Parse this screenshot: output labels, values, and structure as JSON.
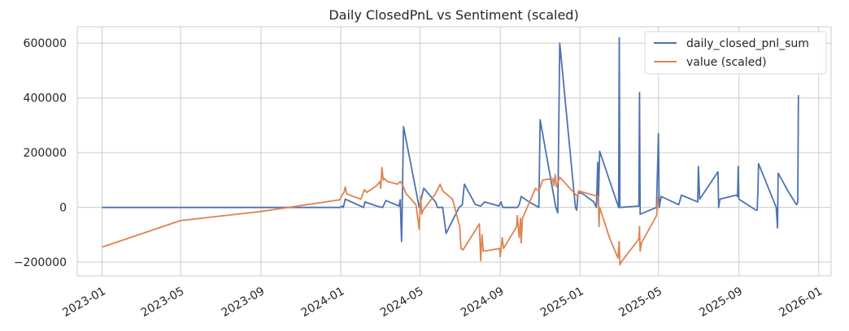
{
  "chart_data": {
    "type": "line",
    "title": "Daily ClosedPnL vs Sentiment (scaled)",
    "xlabel": "",
    "ylabel": "",
    "x_axis": "date",
    "xlim": [
      "2022-11-24",
      "2026-01-20"
    ],
    "ylim": [
      -250000,
      660000
    ],
    "x_ticks": [
      "2023-01-01",
      "2023-05-01",
      "2023-09-01",
      "2024-01-01",
      "2024-05-01",
      "2024-09-01",
      "2025-01-01",
      "2025-05-01",
      "2025-09-01",
      "2026-01-01"
    ],
    "x_tick_labels": [
      "2023-01",
      "2023-05",
      "2023-09",
      "2024-01",
      "2024-05",
      "2024-09",
      "2025-01",
      "2025-05",
      "2025-09",
      "2026-01"
    ],
    "y_ticks": [
      -200000,
      0,
      200000,
      400000,
      600000
    ],
    "y_tick_labels": [
      "−200000",
      "0",
      "200000",
      "400000",
      "600000"
    ],
    "grid": true,
    "legend": "top-right",
    "series": [
      {
        "name": "daily_closed_pnl_sum",
        "color": "#4c72b0",
        "points": [
          [
            "2023-01-01",
            0
          ],
          [
            "2023-12-31",
            0
          ],
          [
            "2024-01-03",
            5000
          ],
          [
            "2024-01-05",
            0
          ],
          [
            "2024-01-08",
            30000
          ],
          [
            "2024-02-05",
            0
          ],
          [
            "2024-02-07",
            20000
          ],
          [
            "2024-02-25",
            5000
          ],
          [
            "2024-03-05",
            0
          ],
          [
            "2024-03-10",
            25000
          ],
          [
            "2024-03-30",
            5000
          ],
          [
            "2024-04-01",
            28000
          ],
          [
            "2024-04-03",
            -125000
          ],
          [
            "2024-04-04",
            0
          ],
          [
            "2024-04-06",
            295000
          ],
          [
            "2024-04-30",
            0
          ],
          [
            "2024-05-07",
            70000
          ],
          [
            "2024-05-25",
            20000
          ],
          [
            "2024-05-28",
            0
          ],
          [
            "2024-06-05",
            0
          ],
          [
            "2024-06-10",
            -95000
          ],
          [
            "2024-06-30",
            0
          ],
          [
            "2024-07-05",
            10000
          ],
          [
            "2024-07-08",
            85000
          ],
          [
            "2024-07-25",
            10000
          ],
          [
            "2024-08-02",
            5000
          ],
          [
            "2024-08-08",
            20000
          ],
          [
            "2024-08-30",
            5000
          ],
          [
            "2024-09-02",
            20000
          ],
          [
            "2024-09-05",
            0
          ],
          [
            "2024-09-27",
            0
          ],
          [
            "2024-09-30",
            10000
          ],
          [
            "2024-10-03",
            40000
          ],
          [
            "2024-10-15",
            20000
          ],
          [
            "2024-10-30",
            0
          ],
          [
            "2024-11-01",
            320000
          ],
          [
            "2024-11-25",
            0
          ],
          [
            "2024-11-28",
            -20000
          ],
          [
            "2024-12-01",
            600000
          ],
          [
            "2024-12-25",
            0
          ],
          [
            "2024-12-27",
            -10000
          ],
          [
            "2024-12-29",
            55000
          ],
          [
            "2025-01-05",
            50000
          ],
          [
            "2025-01-22",
            20000
          ],
          [
            "2025-01-26",
            0
          ],
          [
            "2025-01-28",
            165000
          ],
          [
            "2025-01-29",
            10000
          ],
          [
            "2025-01-31",
            205000
          ],
          [
            "2025-03-01",
            0
          ],
          [
            "2025-03-02",
            620000
          ],
          [
            "2025-03-03",
            0
          ],
          [
            "2025-04-01",
            5000
          ],
          [
            "2025-04-02",
            420000
          ],
          [
            "2025-04-03",
            -25000
          ],
          [
            "2025-04-28",
            0
          ],
          [
            "2025-05-01",
            270000
          ],
          [
            "2025-05-02",
            0
          ],
          [
            "2025-05-05",
            40000
          ],
          [
            "2025-06-01",
            10000
          ],
          [
            "2025-06-05",
            45000
          ],
          [
            "2025-06-30",
            20000
          ],
          [
            "2025-07-01",
            150000
          ],
          [
            "2025-07-03",
            30000
          ],
          [
            "2025-07-31",
            130000
          ],
          [
            "2025-08-01",
            0
          ],
          [
            "2025-08-03",
            30000
          ],
          [
            "2025-08-28",
            45000
          ],
          [
            "2025-08-30",
            40000
          ],
          [
            "2025-08-31",
            150000
          ],
          [
            "2025-09-01",
            30000
          ],
          [
            "2025-09-27",
            -10000
          ],
          [
            "2025-09-29",
            -10000
          ],
          [
            "2025-09-30",
            60000
          ],
          [
            "2025-10-01",
            160000
          ],
          [
            "2025-10-28",
            0
          ],
          [
            "2025-10-30",
            -75000
          ],
          [
            "2025-10-31",
            125000
          ],
          [
            "2025-11-15",
            60000
          ],
          [
            "2025-11-28",
            10000
          ],
          [
            "2025-11-30",
            20000
          ],
          [
            "2025-12-01",
            410000
          ]
        ]
      },
      {
        "name": "value (scaled)",
        "color": "#dd8452",
        "points": [
          [
            "2023-01-01",
            -145000
          ],
          [
            "2023-05-01",
            -48000
          ],
          [
            "2023-09-01",
            -15000
          ],
          [
            "2023-12-31",
            28000
          ],
          [
            "2024-01-03",
            45000
          ],
          [
            "2024-01-06",
            55000
          ],
          [
            "2024-01-08",
            75000
          ],
          [
            "2024-01-10",
            50000
          ],
          [
            "2024-01-20",
            40000
          ],
          [
            "2024-02-01",
            30000
          ],
          [
            "2024-02-06",
            65000
          ],
          [
            "2024-02-10",
            55000
          ],
          [
            "2024-02-25",
            80000
          ],
          [
            "2024-03-01",
            95000
          ],
          [
            "2024-03-02",
            70000
          ],
          [
            "2024-03-04",
            145000
          ],
          [
            "2024-03-06",
            100000
          ],
          [
            "2024-03-08",
            105000
          ],
          [
            "2024-03-12",
            95000
          ],
          [
            "2024-03-28",
            85000
          ],
          [
            "2024-04-01",
            95000
          ],
          [
            "2024-04-05",
            80000
          ],
          [
            "2024-04-10",
            50000
          ],
          [
            "2024-04-25",
            10000
          ],
          [
            "2024-04-30",
            -80000
          ],
          [
            "2024-05-02",
            40000
          ],
          [
            "2024-05-04",
            -25000
          ],
          [
            "2024-05-06",
            -10000
          ],
          [
            "2024-05-25",
            50000
          ],
          [
            "2024-06-01",
            85000
          ],
          [
            "2024-06-05",
            60000
          ],
          [
            "2024-06-20",
            30000
          ],
          [
            "2024-07-01",
            -70000
          ],
          [
            "2024-07-03",
            -150000
          ],
          [
            "2024-07-06",
            -155000
          ],
          [
            "2024-07-10",
            -140000
          ],
          [
            "2024-07-31",
            -60000
          ],
          [
            "2024-08-02",
            -195000
          ],
          [
            "2024-08-04",
            -100000
          ],
          [
            "2024-08-06",
            -160000
          ],
          [
            "2024-08-31",
            -150000
          ],
          [
            "2024-09-01",
            -180000
          ],
          [
            "2024-09-04",
            -110000
          ],
          [
            "2024-09-06",
            -150000
          ],
          [
            "2024-09-26",
            -70000
          ],
          [
            "2024-09-27",
            -30000
          ],
          [
            "2024-09-30",
            -110000
          ],
          [
            "2024-10-02",
            -40000
          ],
          [
            "2024-10-03",
            -130000
          ],
          [
            "2024-10-05",
            -40000
          ],
          [
            "2024-10-25",
            70000
          ],
          [
            "2024-10-30",
            60000
          ],
          [
            "2024-11-05",
            100000
          ],
          [
            "2024-11-20",
            105000
          ],
          [
            "2024-11-22",
            80000
          ],
          [
            "2024-11-24",
            120000
          ],
          [
            "2024-11-26",
            75000
          ],
          [
            "2024-12-01",
            110000
          ],
          [
            "2024-12-28",
            40000
          ],
          [
            "2024-12-30",
            60000
          ],
          [
            "2025-01-29",
            40000
          ],
          [
            "2025-01-30",
            -70000
          ],
          [
            "2025-01-31",
            0
          ],
          [
            "2025-02-15",
            -110000
          ],
          [
            "2025-02-28",
            -185000
          ],
          [
            "2025-03-01",
            -150000
          ],
          [
            "2025-03-02",
            -125000
          ],
          [
            "2025-03-03",
            -210000
          ],
          [
            "2025-03-05",
            -200000
          ],
          [
            "2025-04-01",
            -115000
          ],
          [
            "2025-04-02",
            -70000
          ],
          [
            "2025-04-03",
            -160000
          ],
          [
            "2025-04-05",
            -130000
          ],
          [
            "2025-04-28",
            -30000
          ],
          [
            "2025-04-30",
            40000
          ]
        ]
      }
    ]
  }
}
